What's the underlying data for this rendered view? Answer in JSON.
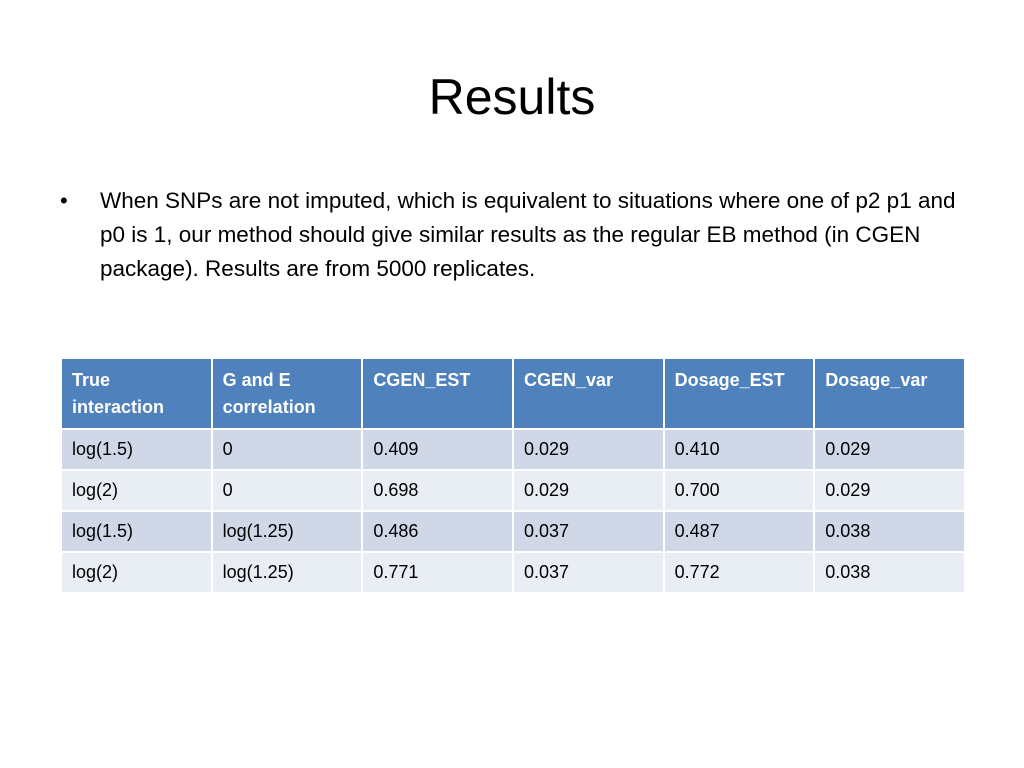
{
  "title": "Results",
  "bullets": [
    {
      "marker": "•",
      "text": "When SNPs are not imputed, which is equivalent to situations where one of p2 p1 and p0 is 1, our method should give similar results as the regular EB method (in CGEN package). Results are from 5000 replicates."
    }
  ],
  "table": {
    "headers": [
      "True interaction",
      "G and E correlation",
      "CGEN_EST",
      "CGEN_var",
      "Dosage_EST",
      "Dosage_var"
    ],
    "rows": [
      [
        "log(1.5)",
        "0",
        "0.409",
        "0.029",
        "0.410",
        "0.029"
      ],
      [
        "log(2)",
        "0",
        "0.698",
        "0.029",
        "0.700",
        "0.029"
      ],
      [
        "log(1.5)",
        "log(1.25)",
        "0.486",
        "0.037",
        "0.487",
        "0.038"
      ],
      [
        "log(2)",
        "log(1.25)",
        "0.771",
        "0.037",
        "0.772",
        "0.038"
      ]
    ]
  },
  "colors": {
    "header_bg": "#4f81bd",
    "row_band_dark": "#d0d8e8",
    "row_band_light": "#e9edf4"
  }
}
